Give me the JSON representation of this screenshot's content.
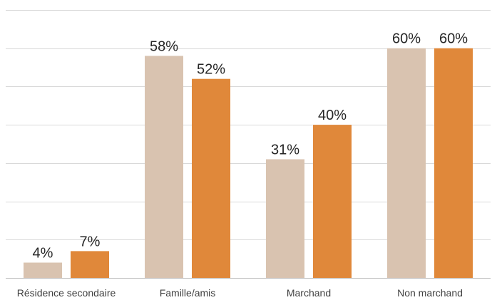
{
  "chart_data": {
    "type": "bar",
    "categories": [
      "Résidence secondaire",
      "Famille/amis",
      "Marchand",
      "Non marchand"
    ],
    "series": [
      {
        "values": [
          4,
          58,
          31,
          60
        ],
        "color": "#d9c3b0"
      },
      {
        "values": [
          7,
          52,
          40,
          60
        ],
        "color": "#e0883a"
      }
    ],
    "data_labels": [
      [
        "4%",
        "58%",
        "31%",
        "60%"
      ],
      [
        "7%",
        "52%",
        "40%",
        "60%"
      ]
    ],
    "title": "",
    "xlabel": "",
    "ylabel": "",
    "ylim": [
      0,
      70
    ],
    "grid": true,
    "legend": "none"
  }
}
